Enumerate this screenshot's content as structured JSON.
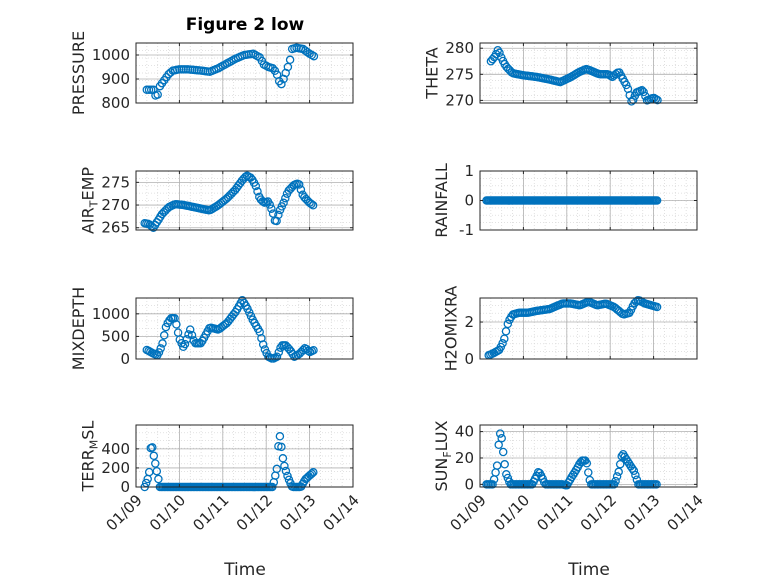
{
  "colors": {
    "marker": "#0072BD",
    "axis": "#262626",
    "grid": "#b0b0b0"
  },
  "x_tick_labels": [
    "01/09",
    "01/10",
    "01/11",
    "01/12",
    "01/13",
    "01/14"
  ],
  "chart_data": [
    {
      "type": "scatter",
      "title": "Figure 2 low",
      "ylabel": "PRESSURE",
      "xlabel": "",
      "xlim": [
        9,
        14
      ],
      "ylim": [
        800,
        1050
      ],
      "yticks": [
        800,
        900,
        1000
      ],
      "grid": true,
      "ylabel_parts": [
        {
          "t": "PRESSURE"
        }
      ],
      "anchors": [
        [
          9.25,
          855
        ],
        [
          9.4,
          855
        ],
        [
          9.43,
          830
        ],
        [
          9.5,
          835
        ],
        [
          9.55,
          870
        ],
        [
          9.65,
          895
        ],
        [
          9.75,
          920
        ],
        [
          9.85,
          935
        ],
        [
          10,
          940
        ],
        [
          10.2,
          940
        ],
        [
          10.5,
          935
        ],
        [
          10.7,
          930
        ],
        [
          10.9,
          945
        ],
        [
          11.1,
          965
        ],
        [
          11.3,
          985
        ],
        [
          11.5,
          1000
        ],
        [
          11.7,
          1005
        ],
        [
          11.85,
          990
        ],
        [
          11.95,
          960
        ],
        [
          12.05,
          950
        ],
        [
          12.15,
          945
        ],
        [
          12.22,
          930
        ],
        [
          12.28,
          905
        ],
        [
          12.33,
          870
        ],
        [
          12.4,
          900
        ],
        [
          12.5,
          950
        ],
        [
          12.55,
          980
        ],
        [
          12.6,
          1025
        ],
        [
          12.7,
          1030
        ],
        [
          12.85,
          1025
        ],
        [
          13,
          1005
        ],
        [
          13.1,
          995
        ]
      ],
      "step": 0.05
    },
    {
      "type": "scatter",
      "title": "",
      "ylabel": "THETA",
      "xlabel": "",
      "xlim": [
        9,
        14
      ],
      "ylim": [
        269.5,
        281
      ],
      "yticks": [
        270,
        275,
        280
      ],
      "grid": true,
      "ylabel_parts": [
        {
          "t": "THETA"
        }
      ],
      "anchors": [
        [
          9.25,
          277.5
        ],
        [
          9.35,
          278.5
        ],
        [
          9.42,
          279.8
        ],
        [
          9.5,
          278.0
        ],
        [
          9.6,
          276.5
        ],
        [
          9.75,
          275.2
        ],
        [
          10,
          274.8
        ],
        [
          10.3,
          274.5
        ],
        [
          10.6,
          274.0
        ],
        [
          10.85,
          273.5
        ],
        [
          11.1,
          274.5
        ],
        [
          11.3,
          275.5
        ],
        [
          11.45,
          276.0
        ],
        [
          11.55,
          275.7
        ],
        [
          11.75,
          275.0
        ],
        [
          11.95,
          275.0
        ],
        [
          12.05,
          274.5
        ],
        [
          12.2,
          275.5
        ],
        [
          12.3,
          274.0
        ],
        [
          12.4,
          272.5
        ],
        [
          12.45,
          271.0
        ],
        [
          12.5,
          269.5
        ],
        [
          12.6,
          271.5
        ],
        [
          12.75,
          272.0
        ],
        [
          12.85,
          270.0
        ],
        [
          13.0,
          270.5
        ],
        [
          13.1,
          270.0
        ]
      ],
      "step": 0.04
    },
    {
      "type": "scatter",
      "title": "",
      "ylabel": "AIR_TEMP",
      "xlabel": "",
      "xlim": [
        9,
        14
      ],
      "ylim": [
        264.5,
        277.5
      ],
      "yticks": [
        265,
        270,
        275
      ],
      "grid": true,
      "ylabel_parts": [
        {
          "t": "AIR"
        },
        {
          "t": "T",
          "sub": true
        },
        {
          "t": "EMP"
        }
      ],
      "anchors": [
        [
          9.2,
          266.0
        ],
        [
          9.3,
          265.8
        ],
        [
          9.4,
          265.0
        ],
        [
          9.5,
          266.5
        ],
        [
          9.6,
          268.0
        ],
        [
          9.75,
          269.5
        ],
        [
          9.9,
          270.2
        ],
        [
          10.1,
          270.0
        ],
        [
          10.35,
          269.5
        ],
        [
          10.5,
          269.2
        ],
        [
          10.7,
          268.8
        ],
        [
          10.9,
          270.0
        ],
        [
          11.1,
          271.5
        ],
        [
          11.3,
          273.5
        ],
        [
          11.45,
          275.5
        ],
        [
          11.55,
          276.5
        ],
        [
          11.65,
          276.0
        ],
        [
          11.75,
          274.5
        ],
        [
          11.85,
          271.5
        ],
        [
          11.95,
          270.5
        ],
        [
          12.05,
          270.8
        ],
        [
          12.15,
          268.5
        ],
        [
          12.22,
          265.8
        ],
        [
          12.3,
          268.5
        ],
        [
          12.4,
          270.5
        ],
        [
          12.5,
          273.0
        ],
        [
          12.65,
          274.5
        ],
        [
          12.75,
          274.8
        ],
        [
          12.85,
          272.0
        ],
        [
          13.0,
          270.5
        ],
        [
          13.1,
          269.8
        ]
      ],
      "step": 0.04
    },
    {
      "type": "scatter",
      "title": "",
      "ylabel": "RAINFALL",
      "xlabel": "",
      "xlim": [
        9,
        14
      ],
      "ylim": [
        -1,
        1
      ],
      "yticks": [
        -1,
        0,
        1
      ],
      "grid": true,
      "ylabel_parts": [
        {
          "t": "RAINFALL"
        }
      ],
      "anchors": [
        [
          9.15,
          0
        ],
        [
          13.1,
          0
        ]
      ],
      "step": 0.03
    },
    {
      "type": "scatter",
      "title": "",
      "ylabel": "MIXDEPTH",
      "xlabel": "",
      "xlim": [
        9,
        14
      ],
      "ylim": [
        0,
        1350
      ],
      "yticks": [
        0,
        500,
        1000
      ],
      "grid": true,
      "ylabel_parts": [
        {
          "t": "MIXDEPTH"
        }
      ],
      "anchors": [
        [
          9.25,
          200
        ],
        [
          9.4,
          120
        ],
        [
          9.5,
          80
        ],
        [
          9.6,
          300
        ],
        [
          9.7,
          750
        ],
        [
          9.8,
          900
        ],
        [
          9.9,
          900
        ],
        [
          10,
          450
        ],
        [
          10.1,
          250
        ],
        [
          10.25,
          650
        ],
        [
          10.35,
          350
        ],
        [
          10.5,
          350
        ],
        [
          10.7,
          700
        ],
        [
          10.9,
          650
        ],
        [
          11.1,
          800
        ],
        [
          11.3,
          1050
        ],
        [
          11.45,
          1300
        ],
        [
          11.55,
          1150
        ],
        [
          11.7,
          850
        ],
        [
          11.85,
          600
        ],
        [
          11.95,
          250
        ],
        [
          12.05,
          50
        ],
        [
          12.15,
          0
        ],
        [
          12.25,
          50
        ],
        [
          12.35,
          300
        ],
        [
          12.45,
          300
        ],
        [
          12.55,
          200
        ],
        [
          12.65,
          50
        ],
        [
          12.75,
          100
        ],
        [
          12.9,
          250
        ],
        [
          13.0,
          150
        ],
        [
          13.1,
          200
        ]
      ],
      "step": 0.04
    },
    {
      "type": "scatter",
      "title": "",
      "ylabel": "H2OMIXRA",
      "xlabel": "",
      "xlim": [
        9,
        14
      ],
      "ylim": [
        0,
        3.3
      ],
      "yticks": [
        0,
        2
      ],
      "grid": true,
      "ylabel_parts": [
        {
          "t": "H2OMIXRA"
        }
      ],
      "anchors": [
        [
          9.2,
          0.2
        ],
        [
          9.3,
          0.3
        ],
        [
          9.45,
          0.5
        ],
        [
          9.55,
          1.0
        ],
        [
          9.65,
          2.0
        ],
        [
          9.75,
          2.4
        ],
        [
          9.9,
          2.5
        ],
        [
          10.1,
          2.5
        ],
        [
          10.3,
          2.6
        ],
        [
          10.6,
          2.7
        ],
        [
          10.9,
          3.0
        ],
        [
          11.1,
          3.0
        ],
        [
          11.3,
          2.9
        ],
        [
          11.5,
          3.1
        ],
        [
          11.7,
          2.9
        ],
        [
          11.9,
          3.0
        ],
        [
          12.1,
          2.8
        ],
        [
          12.3,
          2.4
        ],
        [
          12.45,
          2.5
        ],
        [
          12.55,
          3.0
        ],
        [
          12.65,
          3.2
        ],
        [
          12.8,
          3.0
        ],
        [
          12.95,
          2.9
        ],
        [
          13.1,
          2.8
        ]
      ],
      "step": 0.04
    },
    {
      "type": "scatter",
      "title": "",
      "ylabel": "TERR_MSL",
      "xlabel": "Time",
      "xlim": [
        9,
        14
      ],
      "ylim": [
        0,
        650
      ],
      "yticks": [
        0,
        200,
        400
      ],
      "grid": true,
      "ylabel_parts": [
        {
          "t": "TERR"
        },
        {
          "t": "M",
          "sub": true
        },
        {
          "t": "SL"
        }
      ],
      "anchors": [
        [
          9.2,
          0
        ],
        [
          9.3,
          120
        ],
        [
          9.35,
          480
        ],
        [
          9.4,
          350
        ],
        [
          9.5,
          120
        ],
        [
          9.55,
          0
        ],
        [
          12.15,
          0
        ],
        [
          12.25,
          200
        ],
        [
          12.3,
          580
        ],
        [
          12.35,
          420
        ],
        [
          12.4,
          250
        ],
        [
          12.5,
          100
        ],
        [
          12.6,
          0
        ],
        [
          12.8,
          0
        ],
        [
          12.9,
          80
        ],
        [
          13.0,
          120
        ],
        [
          13.1,
          160
        ]
      ],
      "step": 0.035
    },
    {
      "type": "scatter",
      "title": "",
      "ylabel": "SUN_FLUX",
      "xlabel": "Time",
      "xlim": [
        9,
        14
      ],
      "ylim": [
        -2,
        45
      ],
      "yticks": [
        0,
        20,
        40
      ],
      "grid": true,
      "ylabel_parts": [
        {
          "t": "SUN"
        },
        {
          "t": "F",
          "sub": true
        },
        {
          "t": "LUX"
        }
      ],
      "anchors": [
        [
          9.15,
          0
        ],
        [
          9.3,
          0
        ],
        [
          9.4,
          15
        ],
        [
          9.45,
          40
        ],
        [
          9.5,
          35
        ],
        [
          9.55,
          20
        ],
        [
          9.6,
          8
        ],
        [
          9.7,
          0
        ],
        [
          10.2,
          0
        ],
        [
          10.3,
          6
        ],
        [
          10.35,
          10
        ],
        [
          10.45,
          4
        ],
        [
          10.5,
          0
        ],
        [
          10.9,
          0
        ],
        [
          11.0,
          -1
        ],
        [
          11.1,
          5
        ],
        [
          11.2,
          10
        ],
        [
          11.3,
          16
        ],
        [
          11.35,
          18
        ],
        [
          11.45,
          18
        ],
        [
          11.5,
          8
        ],
        [
          11.55,
          0
        ],
        [
          12.1,
          0
        ],
        [
          12.2,
          10
        ],
        [
          12.28,
          24
        ],
        [
          12.35,
          20
        ],
        [
          12.45,
          15
        ],
        [
          12.55,
          10
        ],
        [
          12.65,
          0
        ],
        [
          13.1,
          0
        ]
      ],
      "step": 0.035
    }
  ]
}
